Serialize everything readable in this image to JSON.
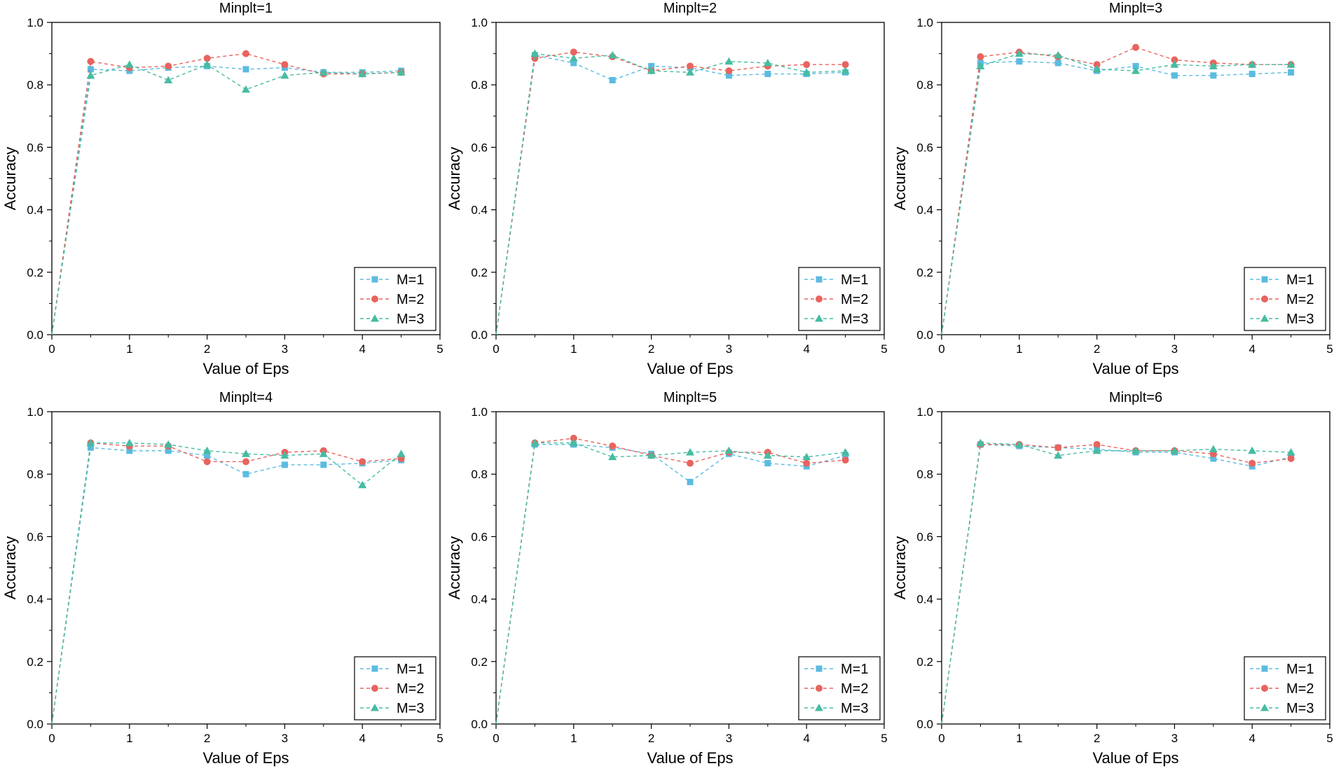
{
  "colors": {
    "M1": "#5bbbe0",
    "M2": "#e8645e",
    "M3": "#46bca2",
    "axis": "#000000"
  },
  "chart_data": [
    {
      "type": "line",
      "title": "Minplt=1",
      "xlabel": "Value of Eps",
      "ylabel": "Accuracy",
      "xlim": [
        0,
        5
      ],
      "ylim": [
        0,
        1.0
      ],
      "xticks": [
        "0",
        "1",
        "2",
        "3",
        "4",
        "5"
      ],
      "yticks": [
        "0.0",
        "0.2",
        "0.4",
        "0.6",
        "0.8",
        "1.0"
      ],
      "x": [
        0,
        0.5,
        1,
        1.5,
        2,
        2.5,
        3,
        3.5,
        4,
        4.5
      ],
      "legend_position": "bottom-right",
      "series": [
        {
          "name": "M=1",
          "marker": "square",
          "values": [
            0,
            0.85,
            0.845,
            0.855,
            0.86,
            0.85,
            0.855,
            0.84,
            0.84,
            0.845
          ]
        },
        {
          "name": "M=2",
          "marker": "circle",
          "values": [
            0,
            0.875,
            0.855,
            0.86,
            0.885,
            0.9,
            0.865,
            0.835,
            0.835,
            0.84
          ]
        },
        {
          "name": "M=3",
          "marker": "triangle",
          "values": [
            0,
            0.83,
            0.865,
            0.815,
            0.865,
            0.785,
            0.83,
            0.84,
            0.835,
            0.84
          ]
        }
      ]
    },
    {
      "type": "line",
      "title": "Minplt=2",
      "xlabel": "Value of Eps",
      "ylabel": "Accuracy",
      "xlim": [
        0,
        5
      ],
      "ylim": [
        0,
        1.0
      ],
      "xticks": [
        "0",
        "1",
        "2",
        "3",
        "4",
        "5"
      ],
      "yticks": [
        "0.0",
        "0.2",
        "0.4",
        "0.6",
        "0.8",
        "1.0"
      ],
      "x": [
        0,
        0.5,
        1,
        1.5,
        2,
        2.5,
        3,
        3.5,
        4,
        4.5
      ],
      "legend_position": "bottom-right",
      "series": [
        {
          "name": "M=1",
          "marker": "square",
          "values": [
            0,
            0.895,
            0.87,
            0.815,
            0.86,
            0.855,
            0.83,
            0.835,
            0.835,
            0.84
          ]
        },
        {
          "name": "M=2",
          "marker": "circle",
          "values": [
            0,
            0.885,
            0.905,
            0.89,
            0.845,
            0.86,
            0.845,
            0.86,
            0.865,
            0.865
          ]
        },
        {
          "name": "M=3",
          "marker": "triangle",
          "values": [
            0,
            0.9,
            0.885,
            0.895,
            0.845,
            0.84,
            0.875,
            0.87,
            0.84,
            0.845
          ]
        }
      ]
    },
    {
      "type": "line",
      "title": "Minplt=3",
      "xlabel": "Value of Eps",
      "ylabel": "Accuracy",
      "xlim": [
        0,
        5
      ],
      "ylim": [
        0,
        1.0
      ],
      "xticks": [
        "0",
        "1",
        "2",
        "3",
        "4",
        "5"
      ],
      "yticks": [
        "0.0",
        "0.2",
        "0.4",
        "0.6",
        "0.8",
        "1.0"
      ],
      "x": [
        0,
        0.5,
        1,
        1.5,
        2,
        2.5,
        3,
        3.5,
        4,
        4.5
      ],
      "legend_position": "bottom-right",
      "series": [
        {
          "name": "M=1",
          "marker": "square",
          "values": [
            0,
            0.87,
            0.875,
            0.87,
            0.845,
            0.86,
            0.83,
            0.83,
            0.835,
            0.84
          ]
        },
        {
          "name": "M=2",
          "marker": "circle",
          "values": [
            0,
            0.89,
            0.905,
            0.89,
            0.865,
            0.92,
            0.88,
            0.87,
            0.865,
            0.865
          ]
        },
        {
          "name": "M=3",
          "marker": "triangle",
          "values": [
            0,
            0.86,
            0.9,
            0.895,
            0.85,
            0.845,
            0.865,
            0.86,
            0.865,
            0.865
          ]
        }
      ]
    },
    {
      "type": "line",
      "title": "Minplt=4",
      "xlabel": "Value of Eps",
      "ylabel": "Accuracy",
      "xlim": [
        0,
        5
      ],
      "ylim": [
        0,
        1.0
      ],
      "xticks": [
        "0",
        "1",
        "2",
        "3",
        "4",
        "5"
      ],
      "yticks": [
        "0.0",
        "0.2",
        "0.4",
        "0.6",
        "0.8",
        "1.0"
      ],
      "x": [
        0,
        0.5,
        1,
        1.5,
        2,
        2.5,
        3,
        3.5,
        4,
        4.5
      ],
      "legend_position": "bottom-right",
      "series": [
        {
          "name": "M=1",
          "marker": "square",
          "values": [
            0,
            0.885,
            0.875,
            0.875,
            0.86,
            0.8,
            0.83,
            0.83,
            0.835,
            0.845
          ]
        },
        {
          "name": "M=2",
          "marker": "circle",
          "values": [
            0,
            0.9,
            0.89,
            0.89,
            0.84,
            0.84,
            0.87,
            0.875,
            0.84,
            0.85
          ]
        },
        {
          "name": "M=3",
          "marker": "triangle",
          "values": [
            0,
            0.9,
            0.9,
            0.895,
            0.875,
            0.865,
            0.86,
            0.865,
            0.765,
            0.865
          ]
        }
      ]
    },
    {
      "type": "line",
      "title": "Minplt=5",
      "xlabel": "Value of Eps",
      "ylabel": "Accuracy",
      "xlim": [
        0,
        5
      ],
      "ylim": [
        0,
        1.0
      ],
      "xticks": [
        "0",
        "1",
        "2",
        "3",
        "4",
        "5"
      ],
      "yticks": [
        "0.0",
        "0.2",
        "0.4",
        "0.6",
        "0.8",
        "1.0"
      ],
      "x": [
        0,
        0.5,
        1,
        1.5,
        2,
        2.5,
        3,
        3.5,
        4,
        4.5
      ],
      "legend_position": "bottom-right",
      "series": [
        {
          "name": "M=1",
          "marker": "square",
          "values": [
            0,
            0.895,
            0.895,
            0.885,
            0.865,
            0.775,
            0.865,
            0.835,
            0.825,
            0.86
          ]
        },
        {
          "name": "M=2",
          "marker": "circle",
          "values": [
            0,
            0.9,
            0.915,
            0.89,
            0.86,
            0.835,
            0.87,
            0.87,
            0.835,
            0.845
          ]
        },
        {
          "name": "M=3",
          "marker": "triangle",
          "values": [
            0,
            0.9,
            0.9,
            0.855,
            0.86,
            0.87,
            0.875,
            0.86,
            0.855,
            0.87
          ]
        }
      ]
    },
    {
      "type": "line",
      "title": "Minplt=6",
      "xlabel": "Value of Eps",
      "ylabel": "Accuracy",
      "xlim": [
        0,
        5
      ],
      "ylim": [
        0,
        1.0
      ],
      "xticks": [
        "0",
        "1",
        "2",
        "3",
        "4",
        "5"
      ],
      "yticks": [
        "0.0",
        "0.2",
        "0.4",
        "0.6",
        "0.8",
        "1.0"
      ],
      "x": [
        0,
        0.5,
        1,
        1.5,
        2,
        2.5,
        3,
        3.5,
        4,
        4.5
      ],
      "legend_position": "bottom-right",
      "series": [
        {
          "name": "M=1",
          "marker": "square",
          "values": [
            0,
            0.895,
            0.89,
            0.885,
            0.88,
            0.87,
            0.87,
            0.85,
            0.825,
            0.855
          ]
        },
        {
          "name": "M=2",
          "marker": "circle",
          "values": [
            0,
            0.895,
            0.895,
            0.885,
            0.895,
            0.875,
            0.875,
            0.865,
            0.835,
            0.85
          ]
        },
        {
          "name": "M=3",
          "marker": "triangle",
          "values": [
            0,
            0.9,
            0.895,
            0.86,
            0.875,
            0.875,
            0.875,
            0.88,
            0.875,
            0.87
          ]
        }
      ]
    }
  ]
}
